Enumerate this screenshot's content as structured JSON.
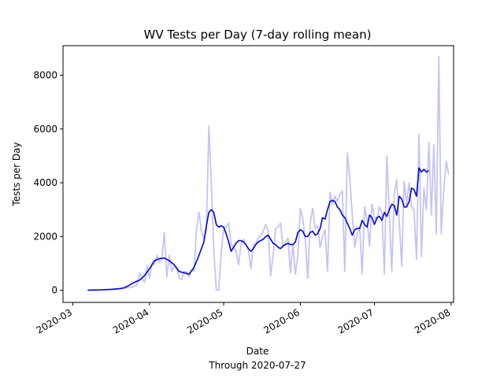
{
  "chart_data": {
    "type": "line",
    "title": "WV Tests per Day (7-day rolling mean)",
    "xlabel": "Date",
    "xlabel_sub": "Through 2020-07-27",
    "ylabel": "Tests per Day",
    "xlim": [
      "2020-02-26",
      "2020-08-02"
    ],
    "ylim": [
      -450,
      9100
    ],
    "grid": false,
    "x_ticks": [
      "2020-03",
      "2020-04",
      "2020-05",
      "2020-06",
      "2020-07",
      "2020-08"
    ],
    "y_ticks": [
      0,
      2000,
      4000,
      6000,
      8000
    ],
    "series": [
      {
        "color": "#c4c4f5",
        "points": [
          [
            "2020-03-07",
            5
          ],
          [
            "2020-03-10",
            10
          ],
          [
            "2020-03-13",
            20
          ],
          [
            "2020-03-16",
            40
          ],
          [
            "2020-03-19",
            60
          ],
          [
            "2020-03-22",
            80
          ],
          [
            "2020-03-25",
            120
          ],
          [
            "2020-03-27",
            200
          ],
          [
            "2020-03-28",
            650
          ],
          [
            "2020-03-29",
            420
          ],
          [
            "2020-03-30",
            300
          ],
          [
            "2020-03-31",
            900
          ],
          [
            "2020-04-01",
            450
          ],
          [
            "2020-04-02",
            1000
          ],
          [
            "2020-04-03",
            950
          ],
          [
            "2020-04-04",
            1300
          ],
          [
            "2020-04-05",
            1050
          ],
          [
            "2020-04-06",
            1200
          ],
          [
            "2020-04-07",
            2150
          ],
          [
            "2020-04-08",
            500
          ],
          [
            "2020-04-09",
            1300
          ],
          [
            "2020-04-10",
            700
          ],
          [
            "2020-04-11",
            900
          ],
          [
            "2020-04-12",
            800
          ],
          [
            "2020-04-13",
            450
          ],
          [
            "2020-04-14",
            400
          ],
          [
            "2020-04-15",
            700
          ],
          [
            "2020-04-16",
            680
          ],
          [
            "2020-04-17",
            500
          ],
          [
            "2020-04-18",
            750
          ],
          [
            "2020-04-19",
            700
          ],
          [
            "2020-04-20",
            2300
          ],
          [
            "2020-04-21",
            2900
          ],
          [
            "2020-04-22",
            2200
          ],
          [
            "2020-04-23",
            1900
          ],
          [
            "2020-04-24",
            2250
          ],
          [
            "2020-04-25",
            6100
          ],
          [
            "2020-04-26",
            4000
          ],
          [
            "2020-04-27",
            1500
          ],
          [
            "2020-04-28",
            10
          ],
          [
            "2020-04-29",
            10
          ],
          [
            "2020-04-30",
            1400
          ],
          [
            "2020-05-01",
            2300
          ],
          [
            "2020-05-02",
            2350
          ],
          [
            "2020-05-03",
            2500
          ],
          [
            "2020-05-04",
            1700
          ],
          [
            "2020-05-05",
            1600
          ],
          [
            "2020-05-06",
            1450
          ],
          [
            "2020-05-07",
            950
          ],
          [
            "2020-05-08",
            1700
          ],
          [
            "2020-05-09",
            1900
          ],
          [
            "2020-05-10",
            1700
          ],
          [
            "2020-05-11",
            1500
          ],
          [
            "2020-05-12",
            800
          ],
          [
            "2020-05-13",
            1700
          ],
          [
            "2020-05-14",
            1750
          ],
          [
            "2020-05-15",
            1950
          ],
          [
            "2020-05-16",
            2050
          ],
          [
            "2020-05-17",
            2200
          ],
          [
            "2020-05-18",
            2450
          ],
          [
            "2020-05-19",
            2200
          ],
          [
            "2020-05-20",
            550
          ],
          [
            "2020-05-21",
            1300
          ],
          [
            "2020-05-22",
            2300
          ],
          [
            "2020-05-23",
            2350
          ],
          [
            "2020-05-24",
            2500
          ],
          [
            "2020-05-25",
            1600
          ],
          [
            "2020-05-26",
            1800
          ],
          [
            "2020-05-27",
            1950
          ],
          [
            "2020-05-28",
            650
          ],
          [
            "2020-05-29",
            1700
          ],
          [
            "2020-05-30",
            600
          ],
          [
            "2020-05-31",
            1300
          ],
          [
            "2020-06-01",
            3050
          ],
          [
            "2020-06-02",
            2650
          ],
          [
            "2020-06-03",
            1900
          ],
          [
            "2020-06-04",
            450
          ],
          [
            "2020-06-05",
            2500
          ],
          [
            "2020-06-06",
            3050
          ],
          [
            "2020-06-07",
            2300
          ],
          [
            "2020-06-08",
            2400
          ],
          [
            "2020-06-09",
            1600
          ],
          [
            "2020-06-10",
            2000
          ],
          [
            "2020-06-11",
            2250
          ],
          [
            "2020-06-12",
            700
          ],
          [
            "2020-06-13",
            3650
          ],
          [
            "2020-06-14",
            3200
          ],
          [
            "2020-06-15",
            3500
          ],
          [
            "2020-06-16",
            3300
          ],
          [
            "2020-06-17",
            3550
          ],
          [
            "2020-06-18",
            3700
          ],
          [
            "2020-06-19",
            700
          ],
          [
            "2020-06-20",
            5100
          ],
          [
            "2020-06-21",
            4200
          ],
          [
            "2020-06-22",
            2800
          ],
          [
            "2020-06-23",
            1600
          ],
          [
            "2020-06-24",
            2100
          ],
          [
            "2020-06-25",
            2350
          ],
          [
            "2020-06-26",
            600
          ],
          [
            "2020-06-27",
            3100
          ],
          [
            "2020-06-28",
            2600
          ],
          [
            "2020-06-29",
            1650
          ],
          [
            "2020-06-30",
            3200
          ],
          [
            "2020-07-01",
            2700
          ],
          [
            "2020-07-02",
            2600
          ],
          [
            "2020-07-03",
            3100
          ],
          [
            "2020-07-04",
            2900
          ],
          [
            "2020-07-05",
            600
          ],
          [
            "2020-07-06",
            5000
          ],
          [
            "2020-07-07",
            2800
          ],
          [
            "2020-07-08",
            700
          ],
          [
            "2020-07-09",
            3600
          ],
          [
            "2020-07-10",
            4100
          ],
          [
            "2020-07-11",
            2600
          ],
          [
            "2020-07-12",
            900
          ],
          [
            "2020-07-13",
            4050
          ],
          [
            "2020-07-14",
            3200
          ],
          [
            "2020-07-15",
            4000
          ],
          [
            "2020-07-16",
            3100
          ],
          [
            "2020-07-17",
            3000
          ],
          [
            "2020-07-18",
            1150
          ],
          [
            "2020-07-19",
            5800
          ],
          [
            "2020-07-20",
            1250
          ],
          [
            "2020-07-21",
            3800
          ],
          [
            "2020-07-22",
            3000
          ],
          [
            "2020-07-23",
            5500
          ],
          [
            "2020-07-24",
            2800
          ],
          [
            "2020-07-25",
            5400
          ],
          [
            "2020-07-26",
            2100
          ],
          [
            "2020-07-27",
            8700
          ],
          [
            "2020-07-28",
            2100
          ],
          [
            "2020-07-29",
            3700
          ],
          [
            "2020-07-30",
            4800
          ],
          [
            "2020-07-31",
            4300
          ]
        ]
      },
      {
        "color": "#0000e6",
        "points": [
          [
            "2020-03-07",
            5
          ],
          [
            "2020-03-12",
            15
          ],
          [
            "2020-03-17",
            35
          ],
          [
            "2020-03-20",
            60
          ],
          [
            "2020-03-22",
            100
          ],
          [
            "2020-03-24",
            200
          ],
          [
            "2020-03-26",
            300
          ],
          [
            "2020-03-28",
            380
          ],
          [
            "2020-03-30",
            550
          ],
          [
            "2020-04-01",
            800
          ],
          [
            "2020-04-03",
            1100
          ],
          [
            "2020-04-05",
            1180
          ],
          [
            "2020-04-07",
            1200
          ],
          [
            "2020-04-09",
            1100
          ],
          [
            "2020-04-11",
            950
          ],
          [
            "2020-04-13",
            700
          ],
          [
            "2020-04-15",
            650
          ],
          [
            "2020-04-17",
            600
          ],
          [
            "2020-04-19",
            850
          ],
          [
            "2020-04-21",
            1300
          ],
          [
            "2020-04-23",
            1800
          ],
          [
            "2020-04-24",
            2400
          ],
          [
            "2020-04-25",
            2900
          ],
          [
            "2020-04-26",
            3000
          ],
          [
            "2020-04-27",
            2900
          ],
          [
            "2020-04-28",
            2450
          ],
          [
            "2020-04-29",
            2350
          ],
          [
            "2020-04-30",
            2400
          ],
          [
            "2020-05-01",
            2350
          ],
          [
            "2020-05-02",
            2100
          ],
          [
            "2020-05-03",
            1800
          ],
          [
            "2020-05-04",
            1450
          ],
          [
            "2020-05-05",
            1600
          ],
          [
            "2020-05-06",
            1750
          ],
          [
            "2020-05-07",
            1850
          ],
          [
            "2020-05-08",
            1850
          ],
          [
            "2020-05-09",
            1800
          ],
          [
            "2020-05-10",
            1700
          ],
          [
            "2020-05-11",
            1550
          ],
          [
            "2020-05-12",
            1450
          ],
          [
            "2020-05-13",
            1550
          ],
          [
            "2020-05-14",
            1700
          ],
          [
            "2020-05-15",
            1800
          ],
          [
            "2020-05-16",
            1850
          ],
          [
            "2020-05-17",
            1900
          ],
          [
            "2020-05-18",
            2000
          ],
          [
            "2020-05-19",
            2050
          ],
          [
            "2020-05-20",
            1900
          ],
          [
            "2020-05-21",
            1750
          ],
          [
            "2020-05-22",
            1700
          ],
          [
            "2020-05-23",
            1600
          ],
          [
            "2020-05-24",
            1550
          ],
          [
            "2020-05-25",
            1650
          ],
          [
            "2020-05-26",
            1700
          ],
          [
            "2020-05-27",
            1750
          ],
          [
            "2020-05-28",
            1700
          ],
          [
            "2020-05-29",
            1700
          ],
          [
            "2020-05-30",
            1800
          ],
          [
            "2020-05-31",
            2150
          ],
          [
            "2020-06-01",
            2250
          ],
          [
            "2020-06-02",
            2200
          ],
          [
            "2020-06-03",
            2000
          ],
          [
            "2020-06-04",
            2000
          ],
          [
            "2020-06-05",
            2150
          ],
          [
            "2020-06-06",
            2200
          ],
          [
            "2020-06-07",
            2050
          ],
          [
            "2020-06-08",
            2100
          ],
          [
            "2020-06-09",
            2300
          ],
          [
            "2020-06-10",
            2700
          ],
          [
            "2020-06-11",
            2650
          ],
          [
            "2020-06-12",
            3000
          ],
          [
            "2020-06-13",
            3300
          ],
          [
            "2020-06-14",
            3350
          ],
          [
            "2020-06-15",
            3300
          ],
          [
            "2020-06-16",
            3100
          ],
          [
            "2020-06-17",
            3000
          ],
          [
            "2020-06-18",
            2800
          ],
          [
            "2020-06-19",
            2700
          ],
          [
            "2020-06-20",
            2500
          ],
          [
            "2020-06-21",
            2300
          ],
          [
            "2020-06-22",
            2050
          ],
          [
            "2020-06-23",
            2250
          ],
          [
            "2020-06-24",
            2300
          ],
          [
            "2020-06-25",
            2300
          ],
          [
            "2020-06-26",
            2600
          ],
          [
            "2020-06-27",
            2450
          ],
          [
            "2020-06-28",
            2350
          ],
          [
            "2020-06-29",
            2800
          ],
          [
            "2020-06-30",
            2700
          ],
          [
            "2020-07-01",
            2450
          ],
          [
            "2020-07-02",
            2700
          ],
          [
            "2020-07-03",
            2750
          ],
          [
            "2020-07-04",
            2600
          ],
          [
            "2020-07-05",
            2900
          ],
          [
            "2020-07-06",
            2750
          ],
          [
            "2020-07-07",
            3000
          ],
          [
            "2020-07-08",
            3200
          ],
          [
            "2020-07-09",
            3150
          ],
          [
            "2020-07-10",
            2800
          ],
          [
            "2020-07-11",
            3500
          ],
          [
            "2020-07-12",
            3400
          ],
          [
            "2020-07-13",
            3100
          ],
          [
            "2020-07-14",
            3100
          ],
          [
            "2020-07-15",
            3300
          ],
          [
            "2020-07-16",
            3800
          ],
          [
            "2020-07-17",
            3750
          ],
          [
            "2020-07-18",
            3500
          ],
          [
            "2020-07-19",
            4550
          ],
          [
            "2020-07-20",
            4400
          ],
          [
            "2020-07-21",
            4500
          ],
          [
            "2020-07-22",
            4400
          ],
          [
            "2020-07-23",
            4450
          ]
        ]
      }
    ]
  }
}
